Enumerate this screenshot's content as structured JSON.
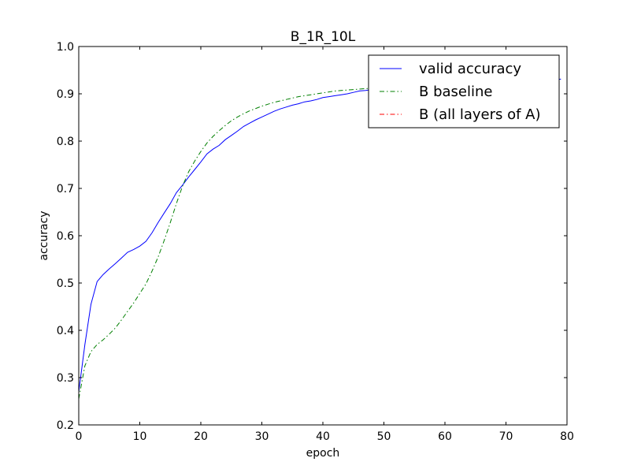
{
  "chart_data": {
    "type": "line",
    "title": "B_1R_10L",
    "xlabel": "epoch",
    "ylabel": "accuracy",
    "xlim": [
      0,
      80
    ],
    "ylim": [
      0.2,
      1.0
    ],
    "xticks": [
      "0",
      "10",
      "20",
      "30",
      "40",
      "50",
      "60",
      "70",
      "80"
    ],
    "yticks": [
      "0.2",
      "0.3",
      "0.4",
      "0.5",
      "0.6",
      "0.7",
      "0.8",
      "0.9",
      "1.0"
    ],
    "grid": false,
    "legend_position": "top-right",
    "series": [
      {
        "name": "valid accuracy",
        "color": "#0000ff",
        "style": "solid",
        "x": [
          0,
          1,
          2,
          3,
          4,
          5,
          6,
          7,
          8,
          9,
          10,
          11,
          12,
          13,
          14,
          15,
          16,
          17,
          18,
          19,
          20,
          21,
          22,
          23,
          24,
          25,
          26,
          27,
          28,
          29,
          30,
          31,
          32,
          33,
          34,
          35,
          36,
          37,
          38,
          39,
          40,
          41,
          42,
          43,
          44,
          45,
          46,
          47,
          48,
          49,
          50,
          51,
          52,
          53,
          54,
          55,
          56,
          57,
          58,
          59,
          60,
          61,
          62,
          63,
          64,
          65,
          66,
          67,
          68,
          69,
          70,
          71,
          72,
          73,
          74,
          75,
          76,
          77,
          78,
          79
        ],
        "y": [
          0.27,
          0.37,
          0.455,
          0.503,
          0.518,
          0.53,
          0.541,
          0.553,
          0.565,
          0.571,
          0.578,
          0.588,
          0.606,
          0.628,
          0.648,
          0.668,
          0.691,
          0.707,
          0.724,
          0.74,
          0.756,
          0.773,
          0.783,
          0.791,
          0.803,
          0.812,
          0.821,
          0.831,
          0.838,
          0.845,
          0.851,
          0.857,
          0.863,
          0.868,
          0.872,
          0.876,
          0.879,
          0.883,
          0.885,
          0.888,
          0.892,
          0.894,
          0.896,
          0.898,
          0.9,
          0.903,
          0.906,
          0.907,
          0.909,
          0.91,
          0.911,
          0.912,
          0.913,
          0.914,
          0.915,
          0.916,
          0.917,
          0.918,
          0.918,
          0.919,
          0.92,
          0.921,
          0.921,
          0.922,
          0.923,
          0.923,
          0.924,
          0.924,
          0.925,
          0.925,
          0.926,
          0.926,
          0.927,
          0.927,
          0.928,
          0.928,
          0.929,
          0.929,
          0.93,
          0.931
        ]
      },
      {
        "name": "B baseline",
        "color": "#007f00",
        "style": "dashdot",
        "x": [
          0,
          1,
          2,
          3,
          4,
          5,
          6,
          7,
          8,
          9,
          10,
          11,
          12,
          13,
          14,
          15,
          16,
          17,
          18,
          19,
          20,
          21,
          22,
          23,
          24,
          25,
          26,
          27,
          28,
          29,
          30,
          31,
          32,
          33,
          34,
          35,
          36,
          37,
          38,
          39,
          40,
          41,
          42,
          43,
          44,
          45,
          46,
          47,
          48,
          49,
          50
        ],
        "y": [
          0.255,
          0.325,
          0.355,
          0.37,
          0.38,
          0.392,
          0.405,
          0.422,
          0.44,
          0.458,
          0.478,
          0.498,
          0.525,
          0.555,
          0.59,
          0.628,
          0.668,
          0.705,
          0.735,
          0.758,
          0.778,
          0.796,
          0.81,
          0.822,
          0.833,
          0.843,
          0.851,
          0.858,
          0.864,
          0.869,
          0.874,
          0.878,
          0.882,
          0.885,
          0.888,
          0.891,
          0.894,
          0.896,
          0.898,
          0.9,
          0.902,
          0.904,
          0.906,
          0.907,
          0.908,
          0.909,
          0.91,
          0.911,
          0.912,
          0.912,
          0.913
        ]
      },
      {
        "name": "B (all layers of A)",
        "color": "#ff0000",
        "style": "dashdot",
        "x": [],
        "y": []
      }
    ]
  }
}
